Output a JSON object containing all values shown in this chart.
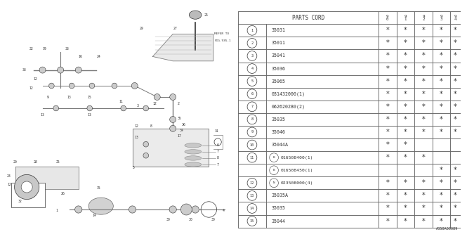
{
  "bg_color": "#ffffff",
  "diagram_label": "A350A00089",
  "border_color": "#666666",
  "text_color": "#333333",
  "header_text": "PARTS CORD",
  "year_cols": [
    "9\n0",
    "9\n1",
    "9\n2",
    "9\n3",
    "9\n4"
  ],
  "rows": [
    {
      "num": "1",
      "is_sub": false,
      "prefix": "",
      "part": "35031",
      "stars": [
        true,
        true,
        true,
        true,
        true
      ]
    },
    {
      "num": "2",
      "is_sub": false,
      "prefix": "",
      "part": "35011",
      "stars": [
        true,
        true,
        true,
        true,
        true
      ]
    },
    {
      "num": "3",
      "is_sub": false,
      "prefix": "",
      "part": "35041",
      "stars": [
        true,
        true,
        true,
        true,
        true
      ]
    },
    {
      "num": "4",
      "is_sub": false,
      "prefix": "",
      "part": "35036",
      "stars": [
        true,
        true,
        true,
        true,
        true
      ]
    },
    {
      "num": "5",
      "is_sub": false,
      "prefix": "",
      "part": "35065",
      "stars": [
        true,
        true,
        true,
        true,
        true
      ]
    },
    {
      "num": "6",
      "is_sub": false,
      "prefix": "",
      "part": "031432000(1)",
      "stars": [
        true,
        true,
        true,
        true,
        true
      ]
    },
    {
      "num": "7",
      "is_sub": false,
      "prefix": "",
      "part": "062620280(2)",
      "stars": [
        true,
        true,
        true,
        true,
        true
      ]
    },
    {
      "num": "8",
      "is_sub": false,
      "prefix": "",
      "part": "35035",
      "stars": [
        true,
        true,
        true,
        true,
        true
      ]
    },
    {
      "num": "9",
      "is_sub": false,
      "prefix": "",
      "part": "35046",
      "stars": [
        true,
        true,
        true,
        true,
        true
      ]
    },
    {
      "num": "10",
      "is_sub": false,
      "prefix": "",
      "part": "35044A",
      "stars": [
        true,
        true,
        false,
        false,
        false
      ]
    },
    {
      "num": "11",
      "is_sub": false,
      "prefix": "B",
      "part": "016508400(1)",
      "stars": [
        true,
        true,
        true,
        false,
        false
      ]
    },
    {
      "num": "11",
      "is_sub": true,
      "prefix": "B",
      "part": "016508450(1)",
      "stars": [
        false,
        false,
        false,
        true,
        true
      ]
    },
    {
      "num": "12",
      "is_sub": false,
      "prefix": "N",
      "part": "023508000(4)",
      "stars": [
        true,
        true,
        true,
        true,
        true
      ]
    },
    {
      "num": "13",
      "is_sub": false,
      "prefix": "",
      "part": "35035A",
      "stars": [
        true,
        true,
        true,
        true,
        true
      ]
    },
    {
      "num": "14",
      "is_sub": false,
      "prefix": "",
      "part": "35035",
      "stars": [
        true,
        true,
        true,
        true,
        true
      ]
    },
    {
      "num": "15",
      "is_sub": false,
      "prefix": "",
      "part": "35044",
      "stars": [
        true,
        true,
        true,
        true,
        true
      ]
    }
  ]
}
